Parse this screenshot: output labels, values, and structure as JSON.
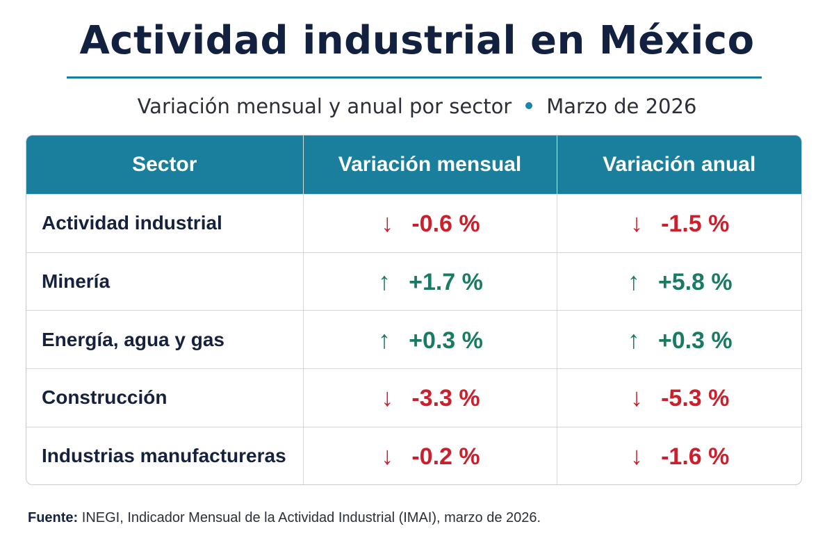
{
  "header": {
    "title": "Actividad industrial en México",
    "subtitle_left": "Variación mensual y anual por sector",
    "subtitle_right": "Marzo de 2026"
  },
  "table": {
    "columns": [
      "Sector",
      "Variación mensual",
      "Variación anual"
    ],
    "rows": [
      {
        "sector": "Actividad industrial",
        "mensual": "-0.6 %",
        "mensual_dir": "down",
        "anual": "-1.5 %",
        "anual_dir": "down"
      },
      {
        "sector": "Minería",
        "mensual": "+1.7 %",
        "mensual_dir": "up",
        "anual": "+5.8 %",
        "anual_dir": "up"
      },
      {
        "sector": "Energía, agua y gas",
        "mensual": "+0.3 %",
        "mensual_dir": "up",
        "anual": "+0.3 %",
        "anual_dir": "up"
      },
      {
        "sector": "Construcción",
        "mensual": "-3.3 %",
        "mensual_dir": "down",
        "anual": "-5.3 %",
        "anual_dir": "down"
      },
      {
        "sector": "Industrias manufactureras",
        "mensual": "-0.2 %",
        "mensual_dir": "down",
        "anual": "-1.6 %",
        "anual_dir": "down"
      }
    ]
  },
  "chart_data": {
    "type": "table",
    "title": "Actividad industrial en México",
    "subtitle": "Variación mensual y anual por sector • Marzo de 2026",
    "columns": [
      "Sector",
      "Variación mensual",
      "Variación anual"
    ],
    "categories": [
      "Actividad industrial",
      "Minería",
      "Energía, agua y gas",
      "Construcción",
      "Industrias manufactureras"
    ],
    "series": [
      {
        "name": "Variación mensual",
        "values": [
          -0.6,
          1.7,
          0.3,
          -3.3,
          -0.2
        ]
      },
      {
        "name": "Variación anual",
        "values": [
          -1.5,
          5.8,
          0.3,
          -5.3,
          -1.6
        ]
      }
    ]
  },
  "source": {
    "label": "Fuente:",
    "text": " INEGI, Indicador Mensual de la Actividad Industrial (IMAI), marzo de 2026."
  },
  "colors": {
    "header_bg": "#1a7f9c",
    "down": "#cc1f2b",
    "up": "#1a7b64",
    "title": "#12213f"
  },
  "icons": {
    "up": "arrow-up-icon",
    "down": "arrow-down-icon"
  }
}
